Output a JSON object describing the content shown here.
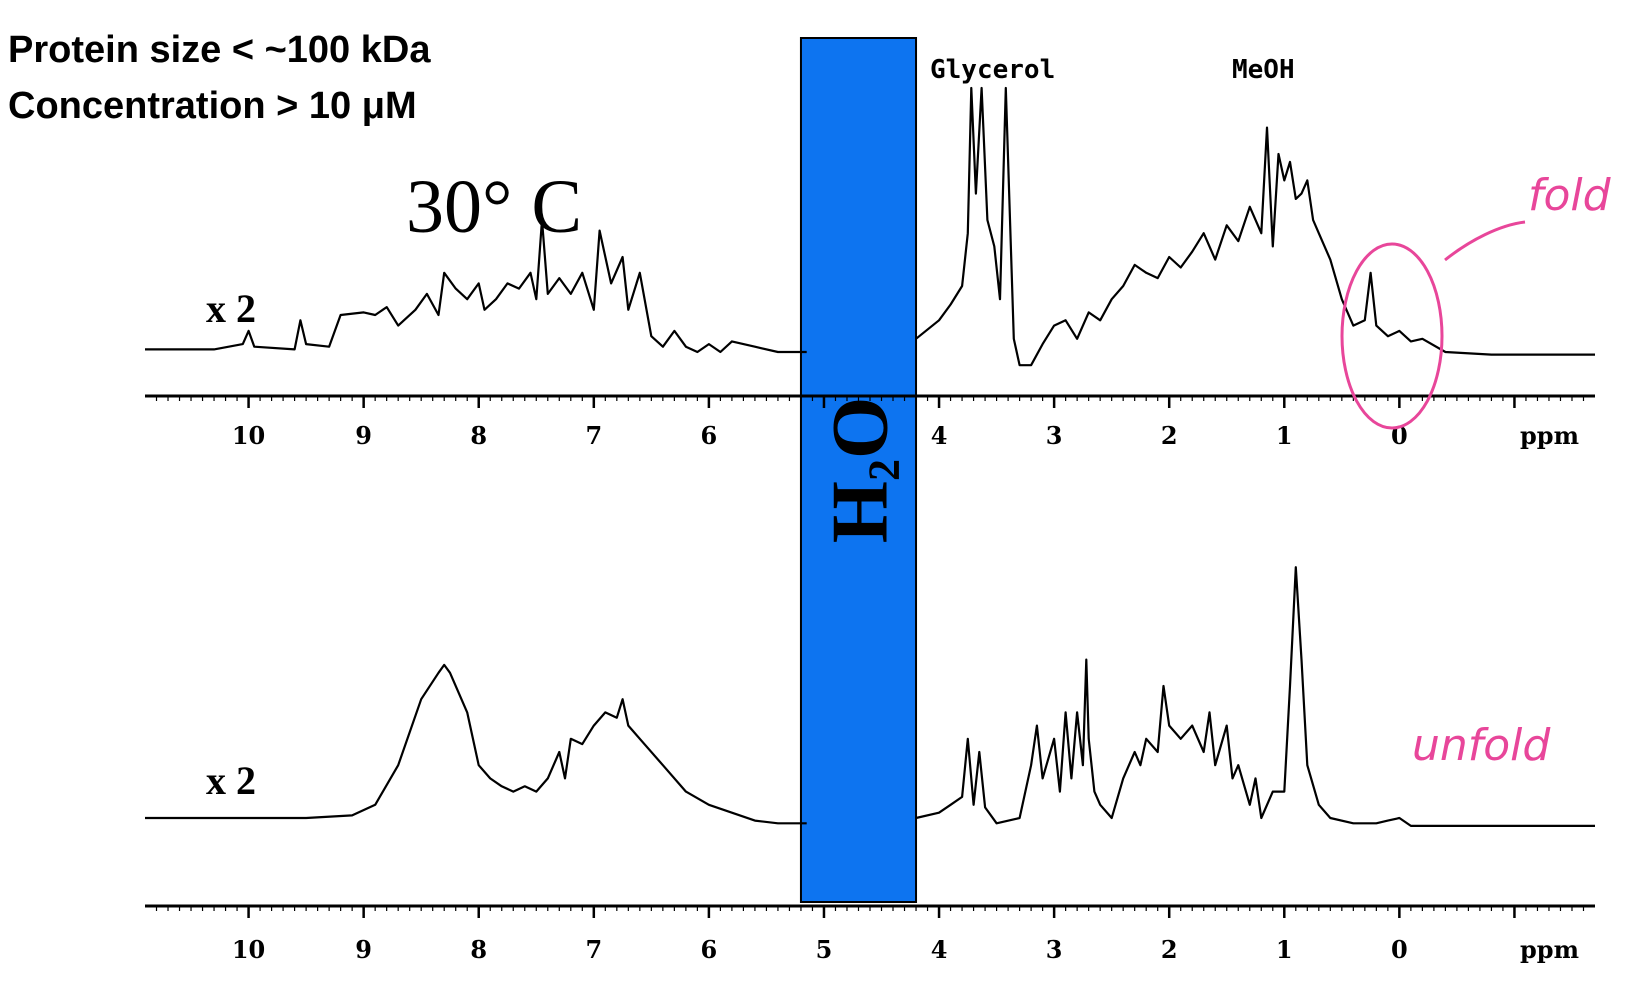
{
  "header": {
    "line1": "Protein size < ~100 kDa",
    "line2": "Concentration > 10 μM"
  },
  "chart_data": [
    {
      "type": "line",
      "panel": "top",
      "temperature_label": "30° C",
      "scale_label": "x 2",
      "xlabel": "ppm",
      "x_reversed": true,
      "xlim": [
        10.9,
        -1.7
      ],
      "xticks": [
        10,
        9,
        8,
        7,
        6,
        4,
        3,
        2,
        1,
        0
      ],
      "series": [
        {
          "x": [
            10.9,
            10.3,
            10.05,
            10.0,
            9.95,
            9.6,
            9.55,
            9.5,
            9.3,
            9.2,
            9.0,
            8.9,
            8.8,
            8.7,
            8.55,
            8.45,
            8.35,
            8.3,
            8.2,
            8.1,
            8.0,
            7.95,
            7.85,
            7.75,
            7.65,
            7.55,
            7.5,
            7.45,
            7.4,
            7.3,
            7.2,
            7.1,
            7.0,
            6.95,
            6.85,
            6.75,
            6.7,
            6.6,
            6.5,
            6.4,
            6.3,
            6.2,
            6.1,
            6.0,
            5.9,
            5.8,
            5.6,
            5.4,
            5.15
          ],
          "y": [
            0.01,
            0.01,
            0.03,
            0.08,
            0.02,
            0.01,
            0.12,
            0.03,
            0.02,
            0.14,
            0.15,
            0.14,
            0.17,
            0.1,
            0.16,
            0.22,
            0.14,
            0.3,
            0.24,
            0.2,
            0.26,
            0.16,
            0.2,
            0.26,
            0.24,
            0.3,
            0.2,
            0.5,
            0.22,
            0.28,
            0.22,
            0.3,
            0.16,
            0.46,
            0.26,
            0.36,
            0.16,
            0.3,
            0.06,
            0.02,
            0.08,
            0.02,
            0.0,
            0.03,
            0.0,
            0.04,
            0.02,
            0.0,
            0.0
          ]
        },
        {
          "x": [
            4.2,
            4.0,
            3.9,
            3.8,
            3.75,
            3.72,
            3.68,
            3.63,
            3.58,
            3.52,
            3.47,
            3.42,
            3.35,
            3.3,
            3.2,
            3.1,
            3.0,
            2.9,
            2.8,
            2.7,
            2.6,
            2.5,
            2.4,
            2.3,
            2.2,
            2.1,
            2.0,
            1.9,
            1.8,
            1.7,
            1.6,
            1.5,
            1.4,
            1.3,
            1.2,
            1.15,
            1.1,
            1.05,
            1.0,
            0.95,
            0.9,
            0.85,
            0.8,
            0.75,
            0.7,
            0.6,
            0.5,
            0.4,
            0.3,
            0.25,
            0.2,
            0.1,
            0.0,
            -0.1,
            -0.2,
            -0.4,
            -0.8,
            -1.2,
            -1.7
          ],
          "y": [
            0.05,
            0.12,
            0.18,
            0.25,
            0.45,
            1.0,
            0.6,
            1.0,
            0.5,
            0.4,
            0.2,
            1.0,
            0.05,
            -0.05,
            -0.05,
            0.03,
            0.1,
            0.12,
            0.05,
            0.15,
            0.12,
            0.2,
            0.25,
            0.33,
            0.3,
            0.28,
            0.36,
            0.32,
            0.38,
            0.45,
            0.35,
            0.48,
            0.42,
            0.55,
            0.45,
            0.85,
            0.4,
            0.75,
            0.65,
            0.72,
            0.58,
            0.6,
            0.65,
            0.5,
            0.45,
            0.35,
            0.2,
            0.1,
            0.12,
            0.3,
            0.1,
            0.06,
            0.08,
            0.04,
            0.05,
            0.0,
            -0.01,
            -0.01,
            -0.01
          ]
        }
      ],
      "annotations": [
        {
          "text": "Glycerol",
          "x": 3.6
        },
        {
          "text": "MeOH",
          "x": 1.0
        }
      ],
      "handwritten": "fold",
      "mask": {
        "from": 5.2,
        "to": 4.2,
        "text": "H",
        "subscript": "2",
        "suffix": "O",
        "color": "#0d74f0"
      }
    },
    {
      "type": "line",
      "panel": "bottom",
      "scale_label": "x 2",
      "xlabel": "ppm",
      "x_reversed": true,
      "xlim": [
        10.9,
        -1.7
      ],
      "xticks": [
        10,
        9,
        8,
        7,
        6,
        5,
        4,
        3,
        2,
        1,
        0
      ],
      "series": [
        {
          "x": [
            10.9,
            10.0,
            9.5,
            9.1,
            8.9,
            8.7,
            8.5,
            8.35,
            8.3,
            8.25,
            8.1,
            8.0,
            7.9,
            7.8,
            7.7,
            7.6,
            7.5,
            7.4,
            7.3,
            7.25,
            7.2,
            7.1,
            7.0,
            6.9,
            6.8,
            6.75,
            6.7,
            6.6,
            6.4,
            6.2,
            6.0,
            5.8,
            5.6,
            5.4,
            5.15
          ],
          "y": [
            0.0,
            0.0,
            0.0,
            0.01,
            0.05,
            0.2,
            0.45,
            0.55,
            0.58,
            0.55,
            0.4,
            0.2,
            0.15,
            0.12,
            0.1,
            0.12,
            0.1,
            0.15,
            0.25,
            0.15,
            0.3,
            0.28,
            0.35,
            0.4,
            0.38,
            0.45,
            0.35,
            0.3,
            0.2,
            0.1,
            0.05,
            0.02,
            -0.01,
            -0.02,
            -0.02
          ]
        },
        {
          "x": [
            4.2,
            4.0,
            3.9,
            3.8,
            3.75,
            3.7,
            3.65,
            3.6,
            3.5,
            3.3,
            3.2,
            3.15,
            3.1,
            3.0,
            2.95,
            2.9,
            2.85,
            2.8,
            2.75,
            2.72,
            2.7,
            2.65,
            2.6,
            2.5,
            2.4,
            2.3,
            2.25,
            2.2,
            2.1,
            2.05,
            2.0,
            1.9,
            1.8,
            1.7,
            1.65,
            1.6,
            1.5,
            1.45,
            1.4,
            1.3,
            1.25,
            1.2,
            1.1,
            1.0,
            0.95,
            0.9,
            0.85,
            0.8,
            0.7,
            0.6,
            0.4,
            0.2,
            0.1,
            0.0,
            -0.1,
            -0.4,
            -0.8,
            -1.2,
            -1.7
          ],
          "y": [
            0.0,
            0.02,
            0.05,
            0.08,
            0.3,
            0.05,
            0.25,
            0.04,
            -0.02,
            0.0,
            0.2,
            0.35,
            0.15,
            0.3,
            0.1,
            0.4,
            0.15,
            0.4,
            0.2,
            0.6,
            0.3,
            0.1,
            0.05,
            0.0,
            0.15,
            0.25,
            0.2,
            0.3,
            0.25,
            0.5,
            0.35,
            0.3,
            0.35,
            0.25,
            0.4,
            0.2,
            0.35,
            0.15,
            0.2,
            0.05,
            0.15,
            0.0,
            0.1,
            0.1,
            0.5,
            0.95,
            0.6,
            0.2,
            0.05,
            0.0,
            -0.02,
            -0.02,
            -0.01,
            0.0,
            -0.03,
            -0.03,
            -0.03,
            -0.03,
            -0.03
          ]
        }
      ],
      "handwritten": "unfold"
    }
  ]
}
